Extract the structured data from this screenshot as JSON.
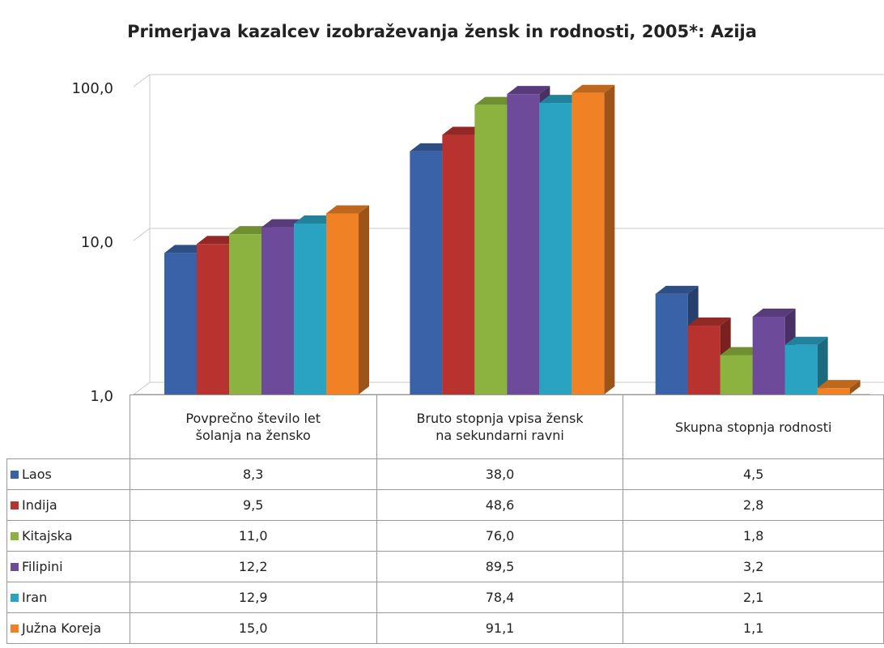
{
  "chart_data": {
    "type": "bar",
    "title": "Primerjava kazalcev izobraževanja žensk in rodnosti, 2005*: Azija",
    "categories": [
      "Povprečno število let šolanja na žensko",
      "Bruto stopnja vpisa žensk na sekundarni ravni",
      "Skupna stopnja rodnosti"
    ],
    "series": [
      {
        "name": "Laos",
        "color": "#3a62a8",
        "values": [
          8.3,
          38.0,
          4.5
        ],
        "value_labels": [
          "8,3",
          "38,0",
          "4,5"
        ]
      },
      {
        "name": "Indija",
        "color": "#b83330",
        "values": [
          9.5,
          48.6,
          2.8
        ],
        "value_labels": [
          "9,5",
          "48,6",
          "2,8"
        ]
      },
      {
        "name": "Kitajska",
        "color": "#8cb340",
        "values": [
          11.0,
          76.0,
          1.8
        ],
        "value_labels": [
          "11,0",
          "76,0",
          "1,8"
        ]
      },
      {
        "name": "Filipini",
        "color": "#6e4a9a",
        "values": [
          12.2,
          89.5,
          3.2
        ],
        "value_labels": [
          "12,2",
          "89,5",
          "3,2"
        ]
      },
      {
        "name": "Iran",
        "color": "#2aa3c2",
        "values": [
          12.9,
          78.4,
          2.1
        ],
        "value_labels": [
          "12,9",
          "78,4",
          "2,1"
        ]
      },
      {
        "name": "Južna Koreja",
        "color": "#f08125",
        "values": [
          15.0,
          91.1,
          1.1
        ],
        "value_labels": [
          "15,0",
          "91,1",
          "1,1"
        ]
      }
    ],
    "ylim": [
      1,
      100
    ],
    "log_y": true,
    "yticks": [
      {
        "value": 1,
        "label": "1,0"
      },
      {
        "value": 10,
        "label": "10,0"
      },
      {
        "value": 100,
        "label": "100,0"
      }
    ],
    "grid": true
  }
}
